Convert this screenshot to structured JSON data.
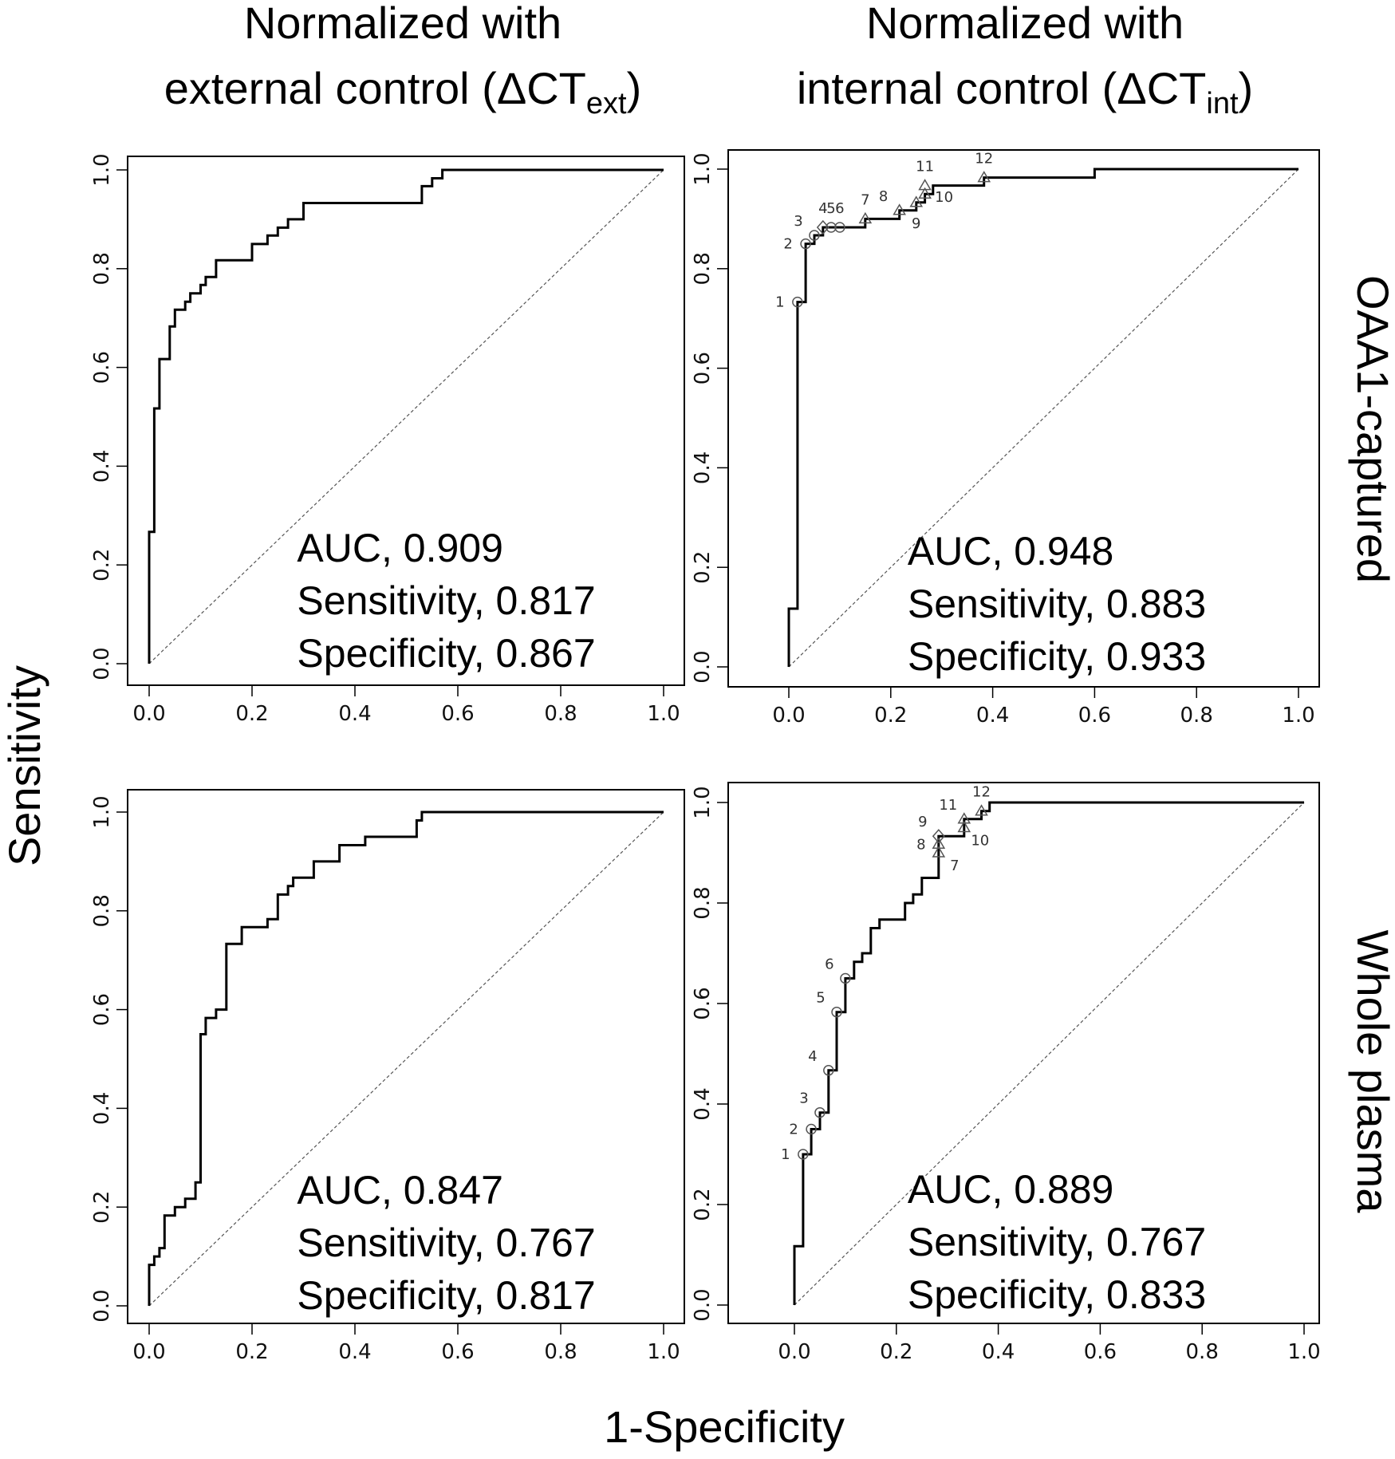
{
  "figure": {
    "col_titles": [
      {
        "line1": "Normalized with",
        "line2_prefix": "external control (ΔCT",
        "line2_sub": "ext",
        "line2_suffix": ")"
      },
      {
        "line1": "Normalized with",
        "line2_prefix": "internal control (ΔCT",
        "line2_sub": "int",
        "line2_suffix": ")"
      }
    ],
    "row_titles": [
      "OAA1-captured",
      "Whole plasma"
    ],
    "ylabel": "Sensitivity",
    "xlabel": "1-Specificity",
    "tick_labels": [
      "0.0",
      "0.2",
      "0.4",
      "0.6",
      "0.8",
      "1.0"
    ]
  },
  "colors": {
    "curve": "#000000",
    "diagonal": "#555555",
    "marker": "#555555",
    "frame": "#000000"
  },
  "chart_data": [
    {
      "type": "line",
      "id": "oaa1-ext",
      "xlim": [
        0,
        1
      ],
      "ylim": [
        0,
        1
      ],
      "xlabel": "1-Specificity",
      "ylabel": "Sensitivity",
      "stats": [
        "AUC, 0.909",
        "Sensitivity, 0.817",
        "Specificity, 0.867"
      ],
      "x": [
        0,
        0,
        0.01,
        0.01,
        0.02,
        0.02,
        0.04,
        0.04,
        0.05,
        0.05,
        0.07,
        0.07,
        0.08,
        0.08,
        0.1,
        0.1,
        0.11,
        0.11,
        0.13,
        0.13,
        0.14,
        0.14,
        0.2,
        0.2,
        0.23,
        0.23,
        0.25,
        0.25,
        0.27,
        0.27,
        0.3,
        0.3,
        0.53,
        0.53,
        0.55,
        0.55,
        0.57,
        0.57,
        1.0
      ],
      "y": [
        0,
        0.267,
        0.267,
        0.517,
        0.517,
        0.617,
        0.617,
        0.683,
        0.683,
        0.717,
        0.717,
        0.733,
        0.733,
        0.75,
        0.75,
        0.767,
        0.767,
        0.783,
        0.783,
        0.817,
        0.817,
        0.817,
        0.817,
        0.85,
        0.85,
        0.867,
        0.867,
        0.883,
        0.883,
        0.9,
        0.9,
        0.933,
        0.933,
        0.967,
        0.967,
        0.983,
        0.983,
        1.0,
        1.0
      ],
      "markers": []
    },
    {
      "type": "line",
      "id": "oaa1-int",
      "xlim": [
        0,
        1
      ],
      "ylim": [
        0,
        1
      ],
      "xlabel": "1-Specificity",
      "ylabel": "Sensitivity",
      "stats": [
        "AUC, 0.948",
        "Sensitivity, 0.883",
        "Specificity, 0.933"
      ],
      "x": [
        0,
        0,
        0.017,
        0.017,
        0.033,
        0.033,
        0.05,
        0.05,
        0.067,
        0.067,
        0.15,
        0.15,
        0.217,
        0.217,
        0.25,
        0.25,
        0.267,
        0.267,
        0.283,
        0.283,
        0.383,
        0.383,
        0.6,
        0.6,
        1.0
      ],
      "y": [
        0,
        0.117,
        0.117,
        0.733,
        0.733,
        0.85,
        0.85,
        0.867,
        0.867,
        0.883,
        0.883,
        0.9,
        0.9,
        0.917,
        0.917,
        0.933,
        0.933,
        0.95,
        0.95,
        0.967,
        0.967,
        0.983,
        0.983,
        1.0,
        1.0
      ],
      "markers": [
        {
          "label": "1",
          "x": 0.017,
          "y": 0.733,
          "shape": "circle",
          "pos": "left"
        },
        {
          "label": "2",
          "x": 0.033,
          "y": 0.85,
          "shape": "circle",
          "pos": "left"
        },
        {
          "label": "3",
          "x": 0.05,
          "y": 0.867,
          "shape": "circle",
          "pos": "upleft"
        },
        {
          "label": "4",
          "x": 0.067,
          "y": 0.883,
          "shape": "diamond",
          "pos": "up"
        },
        {
          "label": "5",
          "x": 0.083,
          "y": 0.883,
          "shape": "circle",
          "pos": "up"
        },
        {
          "label": "6",
          "x": 0.1,
          "y": 0.883,
          "shape": "circle",
          "pos": "up"
        },
        {
          "label": "7",
          "x": 0.15,
          "y": 0.9,
          "shape": "triangle",
          "pos": "up"
        },
        {
          "label": "8",
          "x": 0.217,
          "y": 0.917,
          "shape": "triangle",
          "pos": "upleft"
        },
        {
          "label": "9",
          "x": 0.25,
          "y": 0.933,
          "shape": "triangle",
          "pos": "down"
        },
        {
          "label": "10",
          "x": 0.267,
          "y": 0.95,
          "shape": "triangle",
          "pos": "right"
        },
        {
          "label": "11",
          "x": 0.267,
          "y": 0.967,
          "shape": "triangle",
          "pos": "up"
        },
        {
          "label": "12",
          "x": 0.383,
          "y": 0.983,
          "shape": "triangle",
          "pos": "up"
        }
      ]
    },
    {
      "type": "line",
      "id": "plasma-ext",
      "xlim": [
        0,
        1
      ],
      "ylim": [
        0,
        1
      ],
      "xlabel": "1-Specificity",
      "ylabel": "Sensitivity",
      "stats": [
        "AUC, 0.847",
        "Sensitivity, 0.767",
        "Specificity, 0.817"
      ],
      "x": [
        0,
        0,
        0.01,
        0.01,
        0.02,
        0.02,
        0.03,
        0.03,
        0.05,
        0.05,
        0.07,
        0.07,
        0.09,
        0.09,
        0.1,
        0.1,
        0.11,
        0.11,
        0.13,
        0.13,
        0.15,
        0.15,
        0.18,
        0.18,
        0.23,
        0.23,
        0.25,
        0.25,
        0.27,
        0.27,
        0.28,
        0.28,
        0.32,
        0.32,
        0.37,
        0.37,
        0.42,
        0.42,
        0.52,
        0.52,
        0.53,
        0.53,
        1.0
      ],
      "y": [
        0,
        0.083,
        0.083,
        0.1,
        0.1,
        0.117,
        0.117,
        0.183,
        0.183,
        0.2,
        0.2,
        0.217,
        0.217,
        0.25,
        0.25,
        0.55,
        0.55,
        0.583,
        0.583,
        0.6,
        0.6,
        0.733,
        0.733,
        0.767,
        0.767,
        0.783,
        0.783,
        0.833,
        0.833,
        0.85,
        0.85,
        0.867,
        0.867,
        0.9,
        0.9,
        0.933,
        0.933,
        0.95,
        0.95,
        0.983,
        0.983,
        1.0,
        1.0
      ],
      "markers": []
    },
    {
      "type": "line",
      "id": "plasma-int",
      "xlim": [
        0,
        1
      ],
      "ylim": [
        0,
        1
      ],
      "xlabel": "1-Specificity",
      "ylabel": "Sensitivity",
      "stats": [
        "AUC, 0.889",
        "Sensitivity, 0.767",
        "Specificity, 0.833"
      ],
      "x": [
        0,
        0,
        0.017,
        0.017,
        0.033,
        0.033,
        0.05,
        0.05,
        0.067,
        0.067,
        0.083,
        0.083,
        0.1,
        0.1,
        0.117,
        0.117,
        0.133,
        0.133,
        0.15,
        0.15,
        0.167,
        0.167,
        0.217,
        0.217,
        0.233,
        0.233,
        0.25,
        0.25,
        0.283,
        0.283,
        0.333,
        0.333,
        0.367,
        0.367,
        0.383,
        0.383,
        1.0
      ],
      "y": [
        0,
        0.117,
        0.117,
        0.3,
        0.3,
        0.35,
        0.35,
        0.383,
        0.383,
        0.467,
        0.467,
        0.583,
        0.583,
        0.65,
        0.65,
        0.683,
        0.683,
        0.7,
        0.7,
        0.75,
        0.75,
        0.767,
        0.767,
        0.8,
        0.8,
        0.817,
        0.817,
        0.85,
        0.85,
        0.933,
        0.933,
        0.967,
        0.967,
        0.983,
        0.983,
        1.0,
        1.0
      ],
      "markers": [
        {
          "label": "1",
          "x": 0.017,
          "y": 0.3,
          "shape": "circle",
          "pos": "left"
        },
        {
          "label": "2",
          "x": 0.033,
          "y": 0.35,
          "shape": "circle",
          "pos": "left"
        },
        {
          "label": "3",
          "x": 0.05,
          "y": 0.383,
          "shape": "circle",
          "pos": "upleft"
        },
        {
          "label": "4",
          "x": 0.067,
          "y": 0.467,
          "shape": "circle",
          "pos": "upleft"
        },
        {
          "label": "5",
          "x": 0.083,
          "y": 0.583,
          "shape": "circle",
          "pos": "upleft"
        },
        {
          "label": "6",
          "x": 0.1,
          "y": 0.65,
          "shape": "circle",
          "pos": "upleft"
        },
        {
          "label": "7",
          "x": 0.283,
          "y": 0.9,
          "shape": "triangle",
          "pos": "downright"
        },
        {
          "label": "8",
          "x": 0.283,
          "y": 0.917,
          "shape": "triangle",
          "pos": "left"
        },
        {
          "label": "9",
          "x": 0.283,
          "y": 0.933,
          "shape": "diamond",
          "pos": "upleft"
        },
        {
          "label": "10",
          "x": 0.333,
          "y": 0.95,
          "shape": "triangle",
          "pos": "downright"
        },
        {
          "label": "11",
          "x": 0.333,
          "y": 0.967,
          "shape": "triangle",
          "pos": "upleft"
        },
        {
          "label": "12",
          "x": 0.367,
          "y": 0.983,
          "shape": "triangle",
          "pos": "up"
        }
      ]
    }
  ]
}
